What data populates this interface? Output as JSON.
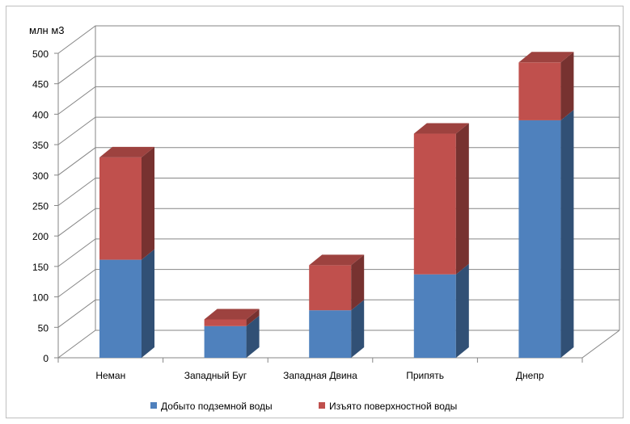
{
  "chart_data": {
    "type": "bar",
    "stacked": true,
    "three_d": true,
    "title": "",
    "ylabel": "млн м3",
    "xlabel": "",
    "ylim": [
      0,
      500
    ],
    "yticks": [
      0,
      50,
      100,
      150,
      200,
      250,
      300,
      350,
      400,
      450,
      500
    ],
    "grid": true,
    "legend_position": "bottom",
    "categories": [
      "Неман",
      "Западный Буг",
      "Западная Двина",
      "Припять",
      "Днепр"
    ],
    "series": [
      {
        "name": "Добыто подземной воды",
        "color": "#4F81BD",
        "values": [
          161,
          52,
          78,
          137,
          390
        ]
      },
      {
        "name": "Изъято поверхностной воды",
        "color": "#C0504D",
        "values": [
          168,
          11,
          74,
          231,
          95
        ]
      }
    ]
  }
}
